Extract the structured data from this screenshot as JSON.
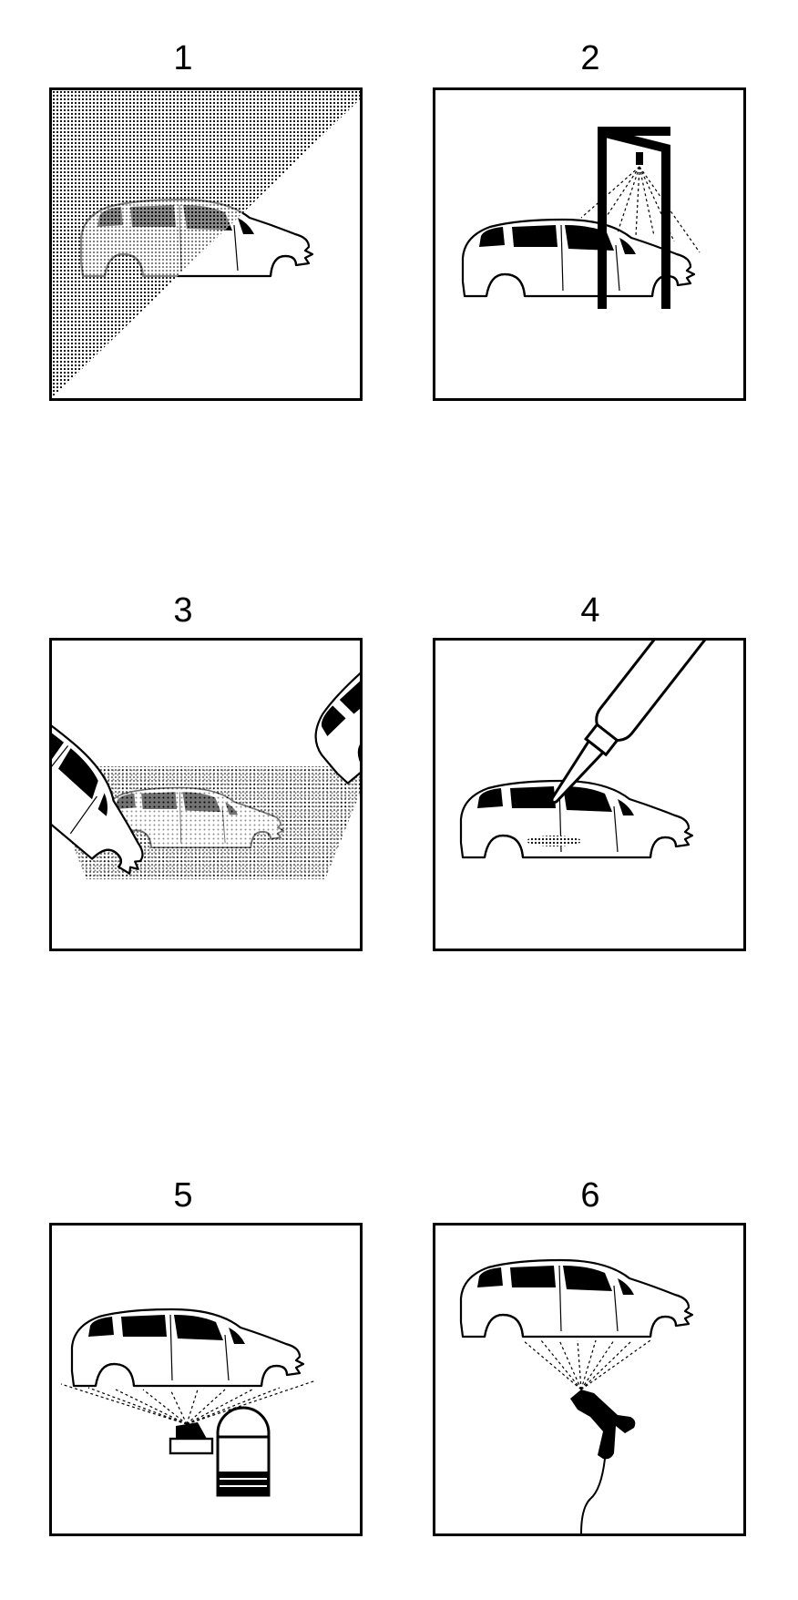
{
  "steps": [
    {
      "number": "1"
    },
    {
      "number": "2"
    },
    {
      "number": "3"
    },
    {
      "number": "4"
    },
    {
      "number": "5"
    },
    {
      "number": "6"
    }
  ],
  "colors": {
    "ink": "#000000",
    "paper": "#ffffff"
  },
  "icons": {
    "step1": "car-body-pretreatment-icon",
    "step2": "spray-gantry-icon",
    "step3": "dip-tank-icon",
    "step4": "sealant-cartridge-icon",
    "step5": "underbody-spray-machine-icon",
    "step6": "spray-gun-icon"
  }
}
